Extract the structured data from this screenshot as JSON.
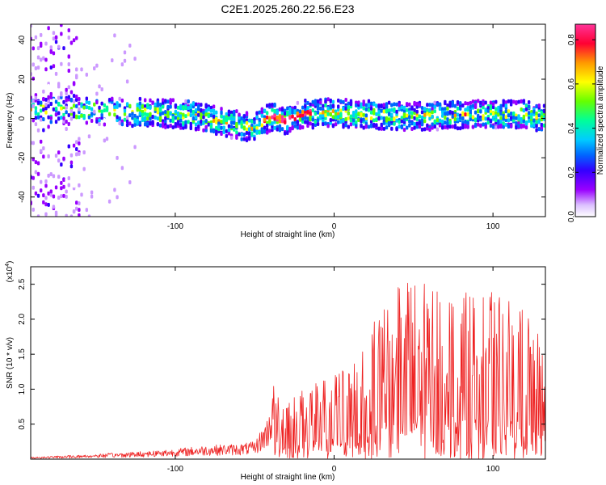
{
  "title": "C2E1.2025.260.22.56.E23",
  "chart_data": [
    {
      "type": "heatmap",
      "xlabel": "Height of straight line (km)",
      "ylabel": "Frequency (Hz)",
      "xlim": [
        -191,
        133
      ],
      "ylim": [
        -50,
        48
      ],
      "xticks": [
        "-100",
        "0",
        "100"
      ],
      "xtick_values": [
        -100,
        0,
        100
      ],
      "yticks": [
        "-40",
        "-20",
        "0",
        "20",
        "40"
      ],
      "ytick_values": [
        -40,
        -20,
        0,
        20,
        40
      ],
      "colorbar": {
        "label": "Normalized spectral amplitude",
        "range": [
          0,
          0.87
        ],
        "ticks": [
          "0.0",
          "0.2",
          "0.4",
          "0.6",
          "0.8"
        ],
        "tick_values": [
          0.0,
          0.2,
          0.4,
          0.6,
          0.8
        ],
        "colormap": [
          "#ffffff",
          "#cc99ff",
          "#9900ff",
          "#3300ff",
          "#0066ff",
          "#00ccff",
          "#00ff99",
          "#66ff00",
          "#ffff00",
          "#ff9900",
          "#ff0033",
          "#ff3399"
        ]
      },
      "ridge": {
        "x": [
          -150,
          -120,
          -90,
          -70,
          -50,
          -40,
          -30,
          -20,
          0,
          20,
          40,
          60,
          80,
          100,
          120,
          133
        ],
        "y": [
          4,
          3,
          2,
          -2,
          -5,
          1,
          -1,
          2,
          3,
          2,
          1,
          1,
          2,
          2,
          2,
          0
        ]
      }
    },
    {
      "type": "line",
      "xlabel": "Height of straight line (km)",
      "ylabel": "SNR (10 * v/v)",
      "multiplier": "(x10",
      "multiplier_exp": "4",
      "multiplier_close": ")",
      "xlim": [
        -191,
        133
      ],
      "ylim": [
        0,
        2.75
      ],
      "xticks": [
        "-100",
        "0",
        "100"
      ],
      "xtick_values": [
        -100,
        0,
        100
      ],
      "yticks": [
        "0.5",
        "1.0",
        "1.5",
        "2.0",
        "2.5"
      ],
      "ytick_values": [
        0.5,
        1.0,
        1.5,
        2.0,
        2.5
      ],
      "series_color": "#ee2222",
      "envelope": {
        "x": [
          -191,
          -160,
          -130,
          -100,
          -80,
          -60,
          -50,
          -42,
          -38,
          -33,
          -30,
          -20,
          0,
          20,
          30,
          40,
          60,
          80,
          100,
          120,
          133
        ],
        "y": [
          0.03,
          0.06,
          0.1,
          0.15,
          0.2,
          0.22,
          0.25,
          0.6,
          1.1,
          0.9,
          0.85,
          1.0,
          1.2,
          1.6,
          2.4,
          2.6,
          2.5,
          2.4,
          2.4,
          2.2,
          1.6
        ]
      }
    }
  ]
}
